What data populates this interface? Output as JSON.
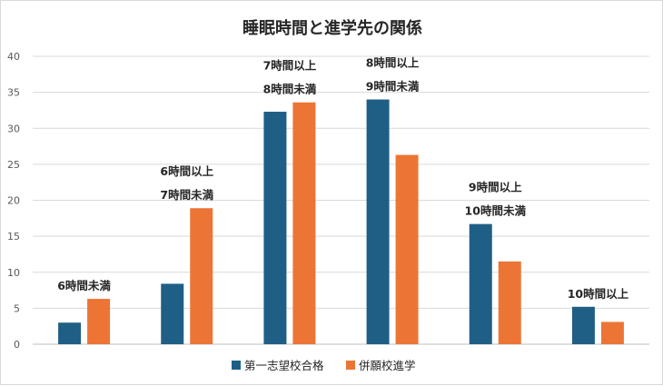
{
  "chart_data": {
    "type": "bar",
    "title": "睡眠時間と進学先の関係",
    "xlabel": "",
    "ylabel": "",
    "ylim": [
      0,
      40
    ],
    "yticks": [
      0,
      5,
      10,
      15,
      20,
      25,
      30,
      35,
      40
    ],
    "grid": true,
    "legend_position": "bottom",
    "categories": [
      [
        "6時間未満"
      ],
      [
        "6時間以上",
        "7時間未満"
      ],
      [
        "7時間以上",
        "8時間未満"
      ],
      [
        "8時間以上",
        "9時間未満"
      ],
      [
        "9時間以上",
        "10時間未満"
      ],
      [
        "10時間以上"
      ]
    ],
    "series": [
      {
        "name": "第一志望校合格",
        "color": "#1f5f86",
        "values": [
          3.0,
          8.4,
          32.3,
          34.0,
          16.7,
          5.2
        ]
      },
      {
        "name": "併願校進学",
        "color": "#ec7536",
        "values": [
          6.3,
          18.9,
          33.6,
          26.3,
          11.5,
          3.1
        ]
      }
    ]
  }
}
